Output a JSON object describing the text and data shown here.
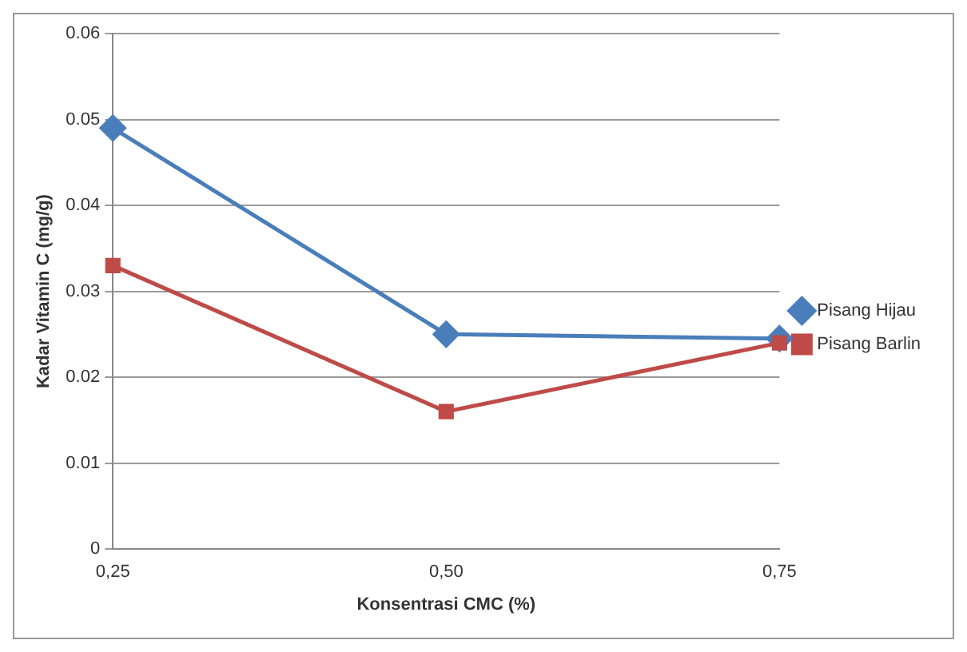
{
  "chart_data": {
    "type": "line",
    "xlabel": "Konsentrasi CMC (%)",
    "ylabel": "Kadar Vitamin C (mg/g)",
    "categories": [
      "0,25",
      "0,50",
      "0,75"
    ],
    "series": [
      {
        "name": "Pisang Hijau",
        "color": "#4a7ebb",
        "marker": "diamond",
        "values": [
          0.049,
          0.025,
          0.0245
        ]
      },
      {
        "name": "Pisang Barlin",
        "color": "#be4b48",
        "marker": "square",
        "values": [
          0.033,
          0.016,
          0.024
        ]
      }
    ],
    "ylim": [
      0,
      0.06
    ],
    "yticks": [
      0,
      0.01,
      0.02,
      0.03,
      0.04,
      0.05,
      0.06
    ],
    "grid": "y",
    "legend": "right",
    "line_style": "solid"
  }
}
